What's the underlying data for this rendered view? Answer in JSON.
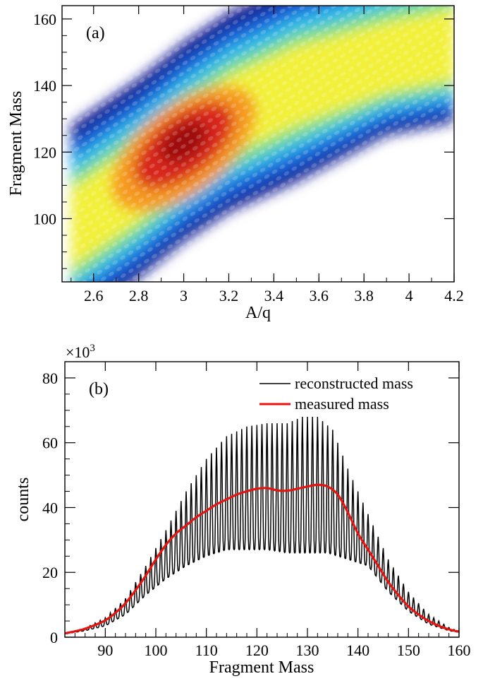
{
  "chart_data": [
    {
      "type": "heatmap",
      "panel_label": "(a)",
      "xlabel": "A/q",
      "ylabel": "Fragment Mass",
      "xlim": [
        2.46,
        4.2
      ],
      "ylim": [
        81,
        164
      ],
      "xticks": [
        2.6,
        2.8,
        3,
        3.2,
        3.4,
        3.6,
        3.8,
        4,
        4.2
      ],
      "xtick_labels": [
        "2.6",
        "2.8",
        "3",
        "3.2",
        "3.4",
        "3.6",
        "3.8",
        "4",
        "4.2"
      ],
      "yticks": [
        100,
        120,
        140,
        160
      ],
      "ytick_labels": [
        "100",
        "120",
        "140",
        "160"
      ],
      "colorscale": [
        "#0b0a8c",
        "#1f60d8",
        "#2fb9e8",
        "#7fe08a",
        "#f2f03a",
        "#f59a22",
        "#d8281a",
        "#9e0e08"
      ],
      "density_ridge": {
        "description_free": true,
        "peak": {
          "x": 3.0,
          "y": 122
        },
        "ridge_line": [
          {
            "x": 2.5,
            "y": 96
          },
          {
            "x": 2.8,
            "y": 110
          },
          {
            "x": 3.0,
            "y": 121
          },
          {
            "x": 3.2,
            "y": 130
          },
          {
            "x": 3.5,
            "y": 139
          },
          {
            "x": 3.9,
            "y": 146
          },
          {
            "x": 4.2,
            "y": 150
          }
        ]
      }
    },
    {
      "type": "line",
      "panel_label": "(b)",
      "xlabel": "Fragment Mass",
      "ylabel": "counts",
      "y_multiplier_label": "×10",
      "y_multiplier_exponent": "3",
      "xlim": [
        82,
        160
      ],
      "ylim": [
        0,
        85
      ],
      "xticks": [
        90,
        100,
        110,
        120,
        130,
        140,
        150,
        160
      ],
      "xtick_labels": [
        "90",
        "100",
        "110",
        "120",
        "130",
        "140",
        "150",
        "160"
      ],
      "yticks": [
        0,
        20,
        40,
        60,
        80
      ],
      "ytick_labels": [
        "0",
        "20",
        "40",
        "60",
        "80"
      ],
      "legend_position": "top-right",
      "series": [
        {
          "name": "reconstructed mass",
          "color": "#000000",
          "style": "oscillating",
          "x_range": [
            82,
            160
          ],
          "envelope_max": [
            [
              82,
              1.2
            ],
            [
              86,
              2.8
            ],
            [
              90,
              6
            ],
            [
              94,
              12
            ],
            [
              98,
              22
            ],
            [
              102,
              33
            ],
            [
              106,
              45
            ],
            [
              110,
              55
            ],
            [
              114,
              62
            ],
            [
              118,
              65
            ],
            [
              122,
              66
            ],
            [
              126,
              66
            ],
            [
              129,
              68
            ],
            [
              132,
              68
            ],
            [
              135,
              64
            ],
            [
              138,
              52
            ],
            [
              142,
              38
            ],
            [
              146,
              24
            ],
            [
              150,
              14
            ],
            [
              154,
              7
            ],
            [
              158,
              3
            ],
            [
              160,
              1.8
            ]
          ],
          "envelope_min": [
            [
              82,
              1.0
            ],
            [
              86,
              2.0
            ],
            [
              90,
              3.5
            ],
            [
              94,
              7
            ],
            [
              98,
              13
            ],
            [
              102,
              18
            ],
            [
              106,
              22
            ],
            [
              110,
              25
            ],
            [
              114,
              27
            ],
            [
              118,
              27
            ],
            [
              122,
              27
            ],
            [
              126,
              26
            ],
            [
              130,
              26
            ],
            [
              134,
              26
            ],
            [
              136,
              25
            ],
            [
              138,
              24
            ],
            [
              142,
              22
            ],
            [
              146,
              14
            ],
            [
              150,
              8
            ],
            [
              154,
              4
            ],
            [
              158,
              2
            ],
            [
              160,
              1.5
            ]
          ]
        },
        {
          "name": "measured mass",
          "color": "#e8130f",
          "points": [
            [
              82,
              1.2
            ],
            [
              84,
              1.8
            ],
            [
              86,
              2.6
            ],
            [
              88,
              3.8
            ],
            [
              90,
              5.2
            ],
            [
              92,
              7.5
            ],
            [
              94,
              10.5
            ],
            [
              96,
              14.5
            ],
            [
              98,
              19
            ],
            [
              100,
              24
            ],
            [
              102,
              28.5
            ],
            [
              104,
              32
            ],
            [
              106,
              34.5
            ],
            [
              108,
              37
            ],
            [
              110,
              39
            ],
            [
              112,
              41
            ],
            [
              114,
              42.5
            ],
            [
              116,
              44
            ],
            [
              118,
              45
            ],
            [
              120,
              45.8
            ],
            [
              122,
              46
            ],
            [
              124,
              45.3
            ],
            [
              126,
              45.2
            ],
            [
              128,
              45.8
            ],
            [
              130,
              46.5
            ],
            [
              132,
              47
            ],
            [
              134,
              46.5
            ],
            [
              136,
              44
            ],
            [
              138,
              38.5
            ],
            [
              140,
              32
            ],
            [
              142,
              27
            ],
            [
              144,
              22
            ],
            [
              146,
              17
            ],
            [
              148,
              13
            ],
            [
              150,
              9.5
            ],
            [
              152,
              7
            ],
            [
              154,
              5
            ],
            [
              156,
              3.5
            ],
            [
              158,
              2.4
            ],
            [
              160,
              1.7
            ]
          ]
        }
      ]
    }
  ]
}
